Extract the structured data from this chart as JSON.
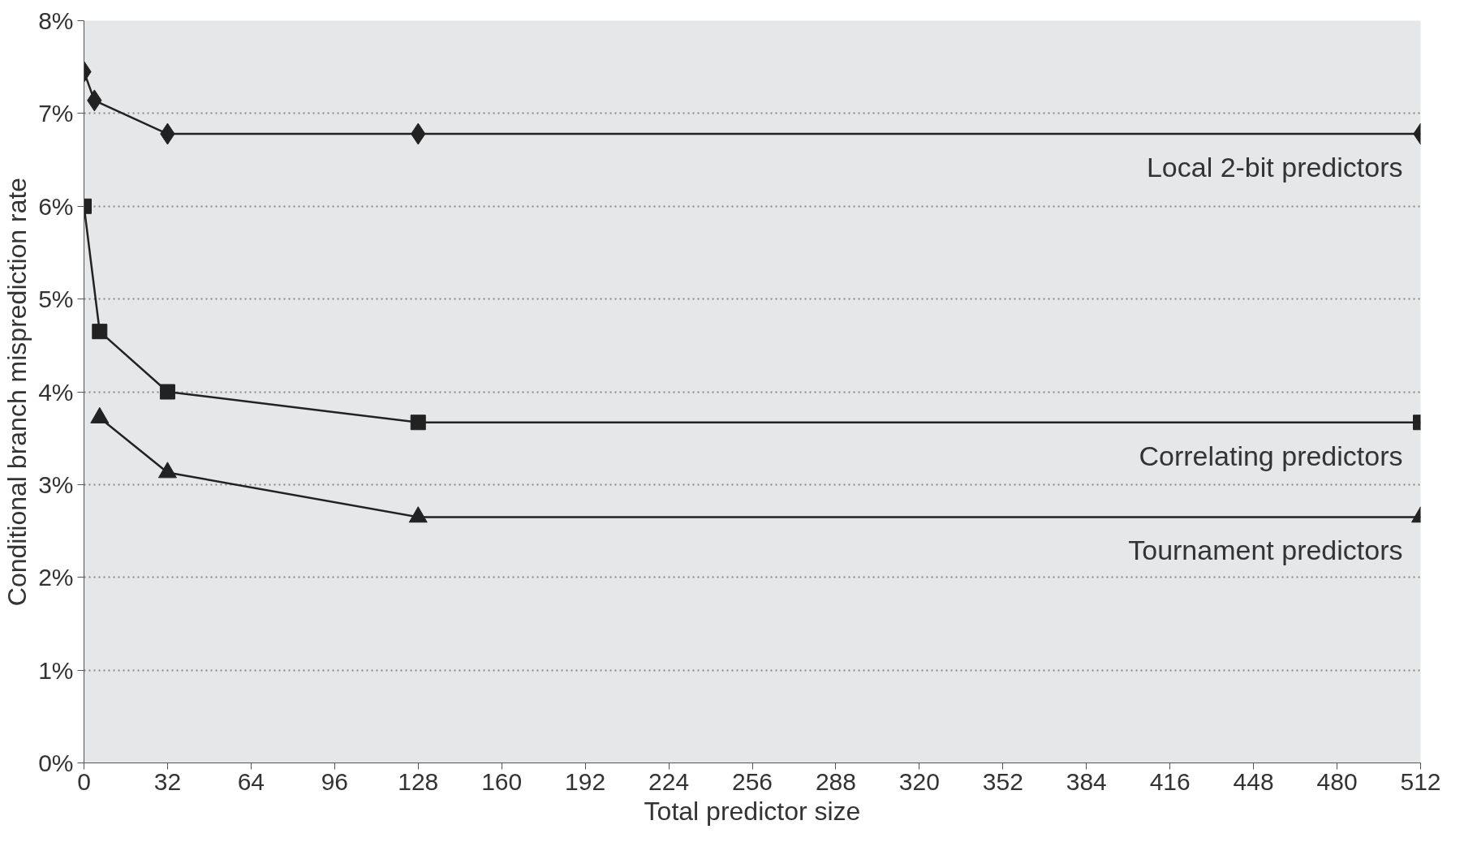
{
  "chart_data": {
    "type": "line",
    "xlabel": "Total predictor size",
    "ylabel": "Conditional branch misprediction rate",
    "xlim": [
      0,
      512
    ],
    "xticks": [
      0,
      32,
      64,
      96,
      128,
      160,
      192,
      224,
      256,
      288,
      320,
      352,
      384,
      416,
      448,
      480,
      512
    ],
    "ylim": [
      0,
      8
    ],
    "yticks": [
      {
        "value": 0,
        "label": "0%"
      },
      {
        "value": 1,
        "label": "1%"
      },
      {
        "value": 2,
        "label": "2%"
      },
      {
        "value": 3,
        "label": "3%"
      },
      {
        "value": 4,
        "label": "4%"
      },
      {
        "value": 5,
        "label": "5%"
      },
      {
        "value": 6,
        "label": "6%"
      },
      {
        "value": 7,
        "label": "7%"
      },
      {
        "value": 8,
        "label": "8%"
      }
    ],
    "grid": "y",
    "legend": false,
    "line_style": "solid",
    "series": [
      {
        "name": "Local 2-bit predictors",
        "color": "#222222",
        "marker": "diamond",
        "x": [
          0,
          4,
          32,
          128,
          512
        ],
        "values": [
          7.45,
          7.14,
          6.78,
          6.78,
          6.78
        ]
      },
      {
        "name": "Correlating predictors",
        "color": "#222222",
        "marker": "square",
        "x": [
          0,
          6,
          32,
          128,
          512
        ],
        "values": [
          6.0,
          4.65,
          4.0,
          3.67,
          3.67
        ]
      },
      {
        "name": "Tournament predictors",
        "color": "#222222",
        "marker": "triangle",
        "x": [
          6,
          32,
          128,
          512
        ],
        "values": [
          3.72,
          3.13,
          2.65,
          2.65
        ]
      }
    ]
  }
}
